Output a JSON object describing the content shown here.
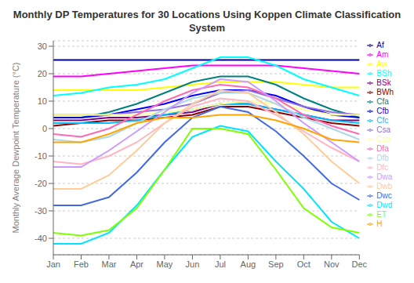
{
  "chart_data": {
    "type": "line",
    "title": "Monthly DP Temperatures for 30 Locations Using Koppen Climate Classification System",
    "ylabel": "Monthly Average Dewpoint Temperature (°C)",
    "categories": [
      "Jan",
      "Feb",
      "Mar",
      "Apr",
      "May",
      "Jun",
      "Jul",
      "Aug",
      "Sep",
      "Oct",
      "Nov",
      "Dec"
    ],
    "ylim": [
      -46,
      32
    ],
    "yticks": [
      -40,
      -30,
      -20,
      -10,
      0,
      10,
      20,
      30
    ],
    "grid": true,
    "legend": "right",
    "series": [
      {
        "name": "Af",
        "color": "#00008B",
        "values": [
          25,
          25,
          25,
          25,
          25,
          25,
          25,
          25,
          25,
          25,
          25,
          25
        ]
      },
      {
        "name": "Am",
        "color": "#ff00ff",
        "values": [
          19,
          19,
          20,
          21,
          22,
          23,
          23,
          23,
          23,
          22,
          21,
          20
        ]
      },
      {
        "name": "Aw",
        "color": "#ffff00",
        "values": [
          14,
          14,
          14,
          14,
          15,
          16,
          17,
          17,
          17,
          16,
          15,
          15
        ]
      },
      {
        "name": "BSh",
        "color": "#00ffff",
        "values": [
          12,
          13,
          15,
          16,
          18,
          22,
          26,
          26,
          23,
          18,
          15,
          12
        ]
      },
      {
        "name": "BSk",
        "color": "#800080",
        "values": [
          3,
          3,
          4,
          4,
          5,
          6,
          9,
          9,
          7,
          5,
          3,
          3
        ]
      },
      {
        "name": "BWh",
        "color": "#8B0000",
        "values": [
          1,
          2,
          3,
          3,
          4,
          5,
          8,
          8,
          6,
          4,
          2,
          1
        ]
      },
      {
        "name": "Cfa",
        "color": "#008080",
        "values": [
          4,
          4,
          6,
          9,
          13,
          17,
          19,
          19,
          16,
          11,
          7,
          4
        ]
      },
      {
        "name": "Cfb",
        "color": "#0000ff",
        "values": [
          4,
          4,
          5,
          7,
          9,
          12,
          14,
          14,
          12,
          8,
          5,
          4
        ]
      },
      {
        "name": "Cfc",
        "color": "#00bfff",
        "values": [
          2,
          2,
          2,
          3,
          5,
          7,
          9,
          9,
          7,
          5,
          3,
          2
        ]
      },
      {
        "name": "Csa",
        "color": "#9370DB",
        "values": [
          5,
          5,
          5,
          6,
          7,
          9,
          13,
          14,
          11,
          8,
          6,
          5
        ]
      },
      {
        "name": "Csb",
        "color": "#ffff99",
        "values": [
          5,
          5,
          5,
          5,
          6,
          7,
          9,
          10,
          9,
          7,
          5,
          5
        ]
      },
      {
        "name": "Dfa",
        "color": "#ff69b4",
        "values": [
          -2,
          -3,
          0,
          5,
          10,
          14,
          16,
          15,
          11,
          5,
          1,
          -2
        ]
      },
      {
        "name": "Dfb",
        "color": "#add8e6",
        "values": [
          -4,
          -5,
          -3,
          2,
          7,
          11,
          13,
          13,
          9,
          4,
          0,
          -4
        ]
      },
      {
        "name": "Dfc",
        "color": "#ffb6c1",
        "values": [
          -12,
          -13,
          -10,
          -5,
          2,
          8,
          11,
          10,
          5,
          -1,
          -7,
          -12
        ]
      },
      {
        "name": "Dwa",
        "color": "#cc99ff",
        "values": [
          -14,
          -14,
          -8,
          -1,
          6,
          13,
          18,
          17,
          10,
          2,
          -5,
          -12
        ]
      },
      {
        "name": "Dwb",
        "color": "#ffcc99",
        "values": [
          -22,
          -22,
          -17,
          -8,
          2,
          9,
          14,
          13,
          6,
          -2,
          -12,
          -20
        ]
      },
      {
        "name": "Dwc",
        "color": "#4169e1",
        "values": [
          -28,
          -28,
          -25,
          -16,
          -5,
          4,
          8,
          6,
          -1,
          -10,
          -20,
          -26
        ]
      },
      {
        "name": "Dwd",
        "color": "#00e5ff",
        "values": [
          -42,
          -42,
          -38,
          -28,
          -15,
          -3,
          1,
          -1,
          -12,
          -22,
          -34,
          -40
        ]
      },
      {
        "name": "ET",
        "color": "#7fff00",
        "values": [
          -38,
          -39,
          -37,
          -29,
          -15,
          0,
          0,
          -2,
          -15,
          -29,
          -36,
          -38
        ]
      },
      {
        "name": "H",
        "color": "#ffa500",
        "values": [
          -5,
          -5,
          -2,
          2,
          4,
          4,
          5,
          5,
          3,
          0,
          -4,
          -5
        ]
      }
    ]
  }
}
